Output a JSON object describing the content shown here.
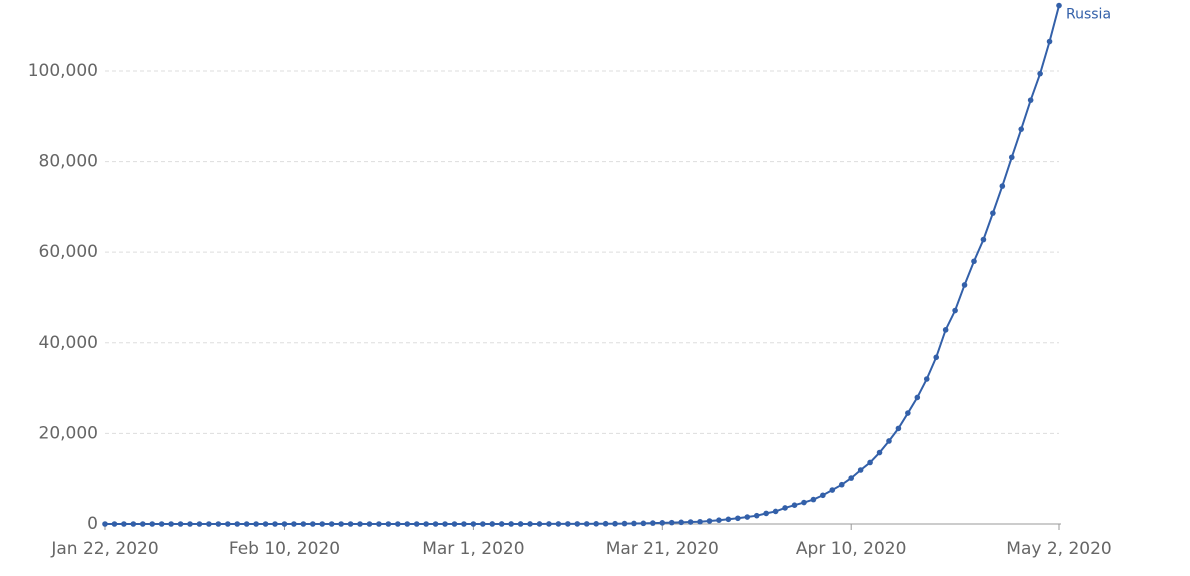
{
  "chart_data": {
    "type": "line",
    "x": [
      "2020-01-22",
      "2020-01-23",
      "2020-01-24",
      "2020-01-25",
      "2020-01-26",
      "2020-01-27",
      "2020-01-28",
      "2020-01-29",
      "2020-01-30",
      "2020-01-31",
      "2020-02-01",
      "2020-02-02",
      "2020-02-03",
      "2020-02-04",
      "2020-02-05",
      "2020-02-06",
      "2020-02-07",
      "2020-02-08",
      "2020-02-09",
      "2020-02-10",
      "2020-02-11",
      "2020-02-12",
      "2020-02-13",
      "2020-02-14",
      "2020-02-15",
      "2020-02-16",
      "2020-02-17",
      "2020-02-18",
      "2020-02-19",
      "2020-02-20",
      "2020-02-21",
      "2020-02-22",
      "2020-02-23",
      "2020-02-24",
      "2020-02-25",
      "2020-02-26",
      "2020-02-27",
      "2020-02-28",
      "2020-02-29",
      "2020-03-01",
      "2020-03-02",
      "2020-03-03",
      "2020-03-04",
      "2020-03-05",
      "2020-03-06",
      "2020-03-07",
      "2020-03-08",
      "2020-03-09",
      "2020-03-10",
      "2020-03-11",
      "2020-03-12",
      "2020-03-13",
      "2020-03-14",
      "2020-03-15",
      "2020-03-16",
      "2020-03-17",
      "2020-03-18",
      "2020-03-19",
      "2020-03-20",
      "2020-03-21",
      "2020-03-22",
      "2020-03-23",
      "2020-03-24",
      "2020-03-25",
      "2020-03-26",
      "2020-03-27",
      "2020-03-28",
      "2020-03-29",
      "2020-03-30",
      "2020-03-31",
      "2020-04-01",
      "2020-04-02",
      "2020-04-03",
      "2020-04-04",
      "2020-04-05",
      "2020-04-06",
      "2020-04-07",
      "2020-04-08",
      "2020-04-09",
      "2020-04-10",
      "2020-04-11",
      "2020-04-12",
      "2020-04-13",
      "2020-04-14",
      "2020-04-15",
      "2020-04-16",
      "2020-04-17",
      "2020-04-18",
      "2020-04-19",
      "2020-04-20",
      "2020-04-21",
      "2020-04-22",
      "2020-04-23",
      "2020-04-24",
      "2020-04-25",
      "2020-04-26",
      "2020-04-27",
      "2020-04-28",
      "2020-04-29",
      "2020-04-30",
      "2020-05-01",
      "2020-05-02"
    ],
    "series": [
      {
        "name": "Russia",
        "color": "#3360a9",
        "values": [
          0,
          0,
          0,
          0,
          0,
          0,
          0,
          0,
          0,
          0,
          2,
          2,
          2,
          2,
          2,
          2,
          2,
          2,
          2,
          2,
          2,
          2,
          2,
          2,
          2,
          2,
          2,
          2,
          2,
          2,
          2,
          2,
          2,
          2,
          2,
          2,
          2,
          2,
          2,
          2,
          2,
          3,
          3,
          3,
          4,
          13,
          13,
          17,
          17,
          20,
          20,
          28,
          45,
          59,
          63,
          90,
          114,
          147,
          199,
          253,
          306,
          367,
          438,
          495,
          658,
          840,
          1036,
          1264,
          1534,
          1836,
          2337,
          2777,
          3548,
          4149,
          4731,
          5389,
          6343,
          7497,
          8672,
          10131,
          11917,
          13584,
          15770,
          18328,
          21102,
          24490,
          27938,
          32008,
          36793,
          42853,
          47121,
          52763,
          57999,
          62773,
          68622,
          74588,
          80949,
          87147,
          93558,
          99399,
          106498,
          114431
        ]
      }
    ],
    "xlim": [
      "2020-01-22",
      "2020-05-02"
    ],
    "xticks": [
      {
        "value": "2020-01-22",
        "label": "Jan 22, 2020"
      },
      {
        "value": "2020-02-10",
        "label": "Feb 10, 2020"
      },
      {
        "value": "2020-03-01",
        "label": "Mar 1, 2020"
      },
      {
        "value": "2020-03-21",
        "label": "Mar 21, 2020"
      },
      {
        "value": "2020-04-10",
        "label": "Apr 10, 2020"
      },
      {
        "value": "2020-05-02",
        "label": "May 2, 2020"
      }
    ],
    "ylim": [
      0,
      115000
    ],
    "yticks": [
      0,
      {
        "value": 20000,
        "label": "20,000"
      },
      {
        "value": 40000,
        "label": "40,000"
      },
      {
        "value": 60000,
        "label": "60,000"
      },
      {
        "value": 80000,
        "label": "80,000"
      },
      {
        "value": 100000,
        "label": "100,000"
      }
    ],
    "grid": true
  }
}
